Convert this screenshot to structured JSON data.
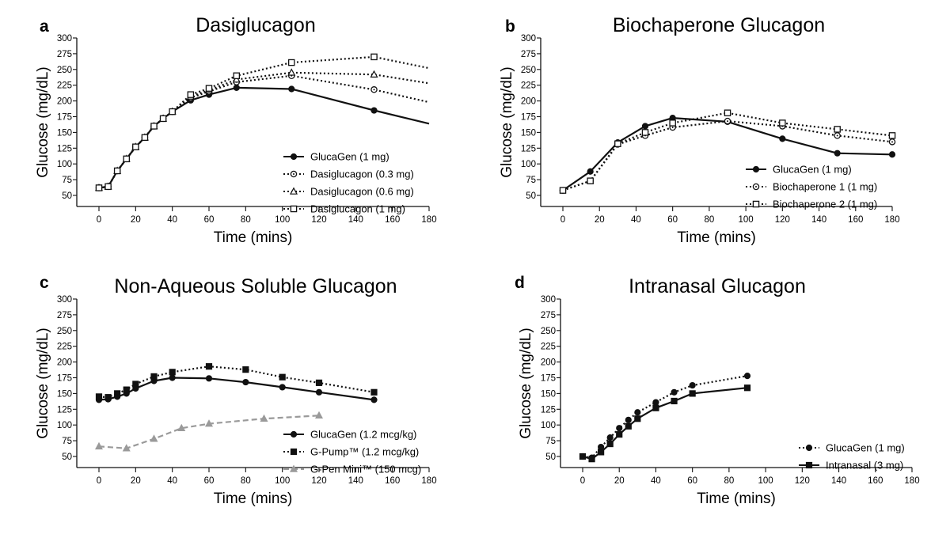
{
  "chart_data": [
    {
      "type": "line",
      "panel_letter": "a",
      "title": "Dasiglucagon",
      "xlabel": "Time (mins)",
      "ylabel": "Glucose (mg/dL)",
      "xlim": [
        0,
        180
      ],
      "ylim": [
        50,
        300
      ],
      "xticks": [
        0,
        20,
        40,
        60,
        80,
        100,
        120,
        140,
        160,
        180
      ],
      "yticks": [
        50,
        75,
        100,
        125,
        150,
        175,
        200,
        225,
        250,
        275,
        300
      ],
      "grid": false,
      "legend_position": "bottom-right",
      "series": [
        {
          "name": "GlucaGen (1 mg)",
          "color": "#111111",
          "line": "solid",
          "marker": "filled-circle",
          "x": [
            0,
            5,
            10,
            15,
            20,
            25,
            30,
            35,
            40,
            50,
            60,
            75,
            105,
            150,
            180
          ],
          "y": [
            62,
            64,
            89,
            108,
            127,
            142,
            160,
            172,
            183,
            201,
            210,
            221,
            219,
            185,
            164
          ],
          "markers_until": 150
        },
        {
          "name": "Dasiglucagon (0.3 mg)",
          "color": "#111111",
          "line": "dotted",
          "marker": "open-circle-dot",
          "x": [
            0,
            5,
            10,
            15,
            20,
            25,
            30,
            35,
            40,
            50,
            60,
            75,
            105,
            150,
            180
          ],
          "y": [
            62,
            64,
            89,
            108,
            127,
            142,
            160,
            172,
            183,
            205,
            215,
            230,
            240,
            218,
            198
          ],
          "markers_until": 150
        },
        {
          "name": "Dasiglucagon (0.6 mg)",
          "color": "#111111",
          "line": "dotted",
          "marker": "open-triangle",
          "x": [
            0,
            5,
            10,
            15,
            20,
            25,
            30,
            35,
            40,
            50,
            60,
            75,
            105,
            150,
            180
          ],
          "y": [
            62,
            64,
            89,
            108,
            127,
            142,
            160,
            172,
            183,
            207,
            217,
            234,
            245,
            242,
            228
          ],
          "markers_until": 150
        },
        {
          "name": "Dasiglucagon (1 mg)",
          "color": "#111111",
          "line": "dotted",
          "marker": "open-square",
          "x": [
            0,
            5,
            10,
            15,
            20,
            25,
            30,
            35,
            40,
            50,
            60,
            75,
            105,
            150,
            180
          ],
          "y": [
            62,
            64,
            89,
            108,
            127,
            142,
            160,
            172,
            183,
            210,
            220,
            240,
            261,
            270,
            252
          ],
          "markers_until": 150
        }
      ]
    },
    {
      "type": "line",
      "panel_letter": "b",
      "title": "Biochaperone Glucagon",
      "xlabel": "Time (mins)",
      "ylabel": "Glucose (mg/dL)",
      "xlim": [
        0,
        180
      ],
      "ylim": [
        50,
        300
      ],
      "xticks": [
        0,
        20,
        40,
        60,
        80,
        100,
        120,
        140,
        160,
        180
      ],
      "yticks": [
        50,
        75,
        100,
        125,
        150,
        175,
        200,
        225,
        250,
        275,
        300
      ],
      "grid": false,
      "legend_position": "bottom-right",
      "series": [
        {
          "name": "GlucaGen (1 mg)",
          "color": "#111111",
          "line": "solid",
          "marker": "filled-circle",
          "x": [
            0,
            15,
            30,
            45,
            60,
            90,
            120,
            150,
            180
          ],
          "y": [
            58,
            88,
            134,
            160,
            173,
            167,
            140,
            117,
            115
          ]
        },
        {
          "name": "Biochaperone 1 (1 mg)",
          "color": "#111111",
          "line": "dotted",
          "marker": "open-circle-dot",
          "x": [
            0,
            15,
            30,
            45,
            60,
            90,
            120,
            150,
            180
          ],
          "y": [
            58,
            73,
            131,
            145,
            158,
            168,
            160,
            145,
            135
          ]
        },
        {
          "name": "Biochaperone 2 (1 mg)",
          "color": "#111111",
          "line": "dotted",
          "marker": "open-square",
          "x": [
            0,
            15,
            30,
            45,
            60,
            90,
            120,
            150,
            180
          ],
          "y": [
            58,
            73,
            132,
            150,
            165,
            181,
            165,
            155,
            145
          ]
        }
      ]
    },
    {
      "type": "line",
      "panel_letter": "c",
      "title": "Non-Aqueous Soluble Glucagon",
      "xlabel": "Time (mins)",
      "ylabel": "Glucose (mg/dL)",
      "xlim": [
        0,
        180
      ],
      "ylim": [
        50,
        300
      ],
      "xticks": [
        0,
        20,
        40,
        60,
        80,
        100,
        120,
        140,
        160,
        180
      ],
      "yticks": [
        50,
        75,
        100,
        125,
        150,
        175,
        200,
        225,
        250,
        275,
        300
      ],
      "grid": false,
      "legend_position": "bottom-right",
      "series": [
        {
          "name": "GlucaGen (1.2 mcg/kg)",
          "color": "#111111",
          "line": "solid",
          "marker": "filled-circle",
          "x": [
            0,
            5,
            10,
            15,
            20,
            30,
            40,
            60,
            80,
            100,
            120,
            150
          ],
          "y": [
            140,
            141,
            145,
            150,
            158,
            170,
            175,
            174,
            168,
            160,
            152,
            140
          ]
        },
        {
          "name": "G-Pump™ (1.2 mcg/kg)",
          "color": "#111111",
          "line": "dotted",
          "marker": "filled-square",
          "x": [
            0,
            5,
            10,
            15,
            20,
            30,
            40,
            60,
            80,
            100,
            120,
            150
          ],
          "y": [
            145,
            144,
            150,
            156,
            165,
            177,
            184,
            193,
            188,
            176,
            167,
            152
          ]
        },
        {
          "name": "G-Pen Mini™ (150 mcg)",
          "color": "#9a9a9a",
          "line": "dashed",
          "marker": "filled-triangle",
          "x": [
            0,
            15,
            30,
            45,
            60,
            90,
            120
          ],
          "y": [
            66,
            63,
            78,
            95,
            102,
            110,
            115
          ]
        }
      ]
    },
    {
      "type": "line",
      "panel_letter": "d",
      "title": "Intranasal Glucagon",
      "xlabel": "Time (mins)",
      "ylabel": "Glucose (mg/dL)",
      "xlim": [
        0,
        180
      ],
      "ylim": [
        50,
        300
      ],
      "xticks": [
        0,
        20,
        40,
        60,
        80,
        100,
        120,
        140,
        160,
        180
      ],
      "yticks": [
        50,
        75,
        100,
        125,
        150,
        175,
        200,
        225,
        250,
        275,
        300
      ],
      "grid": false,
      "legend_position": "bottom-right",
      "series": [
        {
          "name": "GlucaGen (1 mg)",
          "color": "#111111",
          "line": "dotted",
          "marker": "filled-circle",
          "x": [
            0,
            5,
            10,
            15,
            20,
            25,
            30,
            40,
            50,
            60,
            90
          ],
          "y": [
            50,
            48,
            65,
            80,
            95,
            108,
            120,
            136,
            152,
            163,
            178
          ]
        },
        {
          "name": "Intranasal (3 mg)",
          "color": "#111111",
          "line": "solid",
          "marker": "filled-square",
          "x": [
            0,
            5,
            10,
            15,
            20,
            25,
            30,
            40,
            50,
            60,
            90
          ],
          "y": [
            50,
            46,
            57,
            70,
            85,
            98,
            110,
            127,
            138,
            150,
            159
          ]
        }
      ]
    }
  ]
}
